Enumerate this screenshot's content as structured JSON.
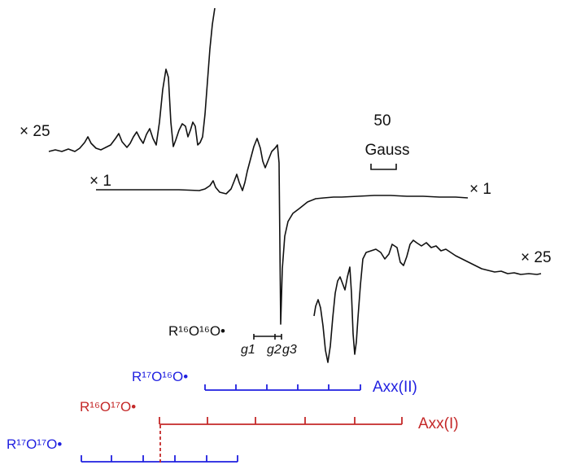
{
  "chart_data": {
    "type": "line",
    "title": "",
    "xlabel": "",
    "ylabel": "",
    "grid": false,
    "scale_bar": {
      "value": "50",
      "unit": "Gauss"
    },
    "multipliers": {
      "left_inset": "× 25",
      "main_left": "× 1",
      "main_right": "× 1",
      "right_inset": "× 25"
    },
    "g_markers": {
      "species": "R¹⁶O¹⁶O•",
      "labels": [
        "g1",
        "g2",
        "g3"
      ]
    },
    "stick_diagrams": [
      {
        "species": "R¹⁷O¹⁶O•",
        "label": "Axx(II)",
        "color": "#1f1fe0"
      },
      {
        "species": "R¹⁶O¹⁷O•",
        "label": "Axx(I)",
        "color": "#c42828"
      },
      {
        "species": "R¹⁷O¹⁷O•",
        "label": "",
        "color": "#1f1fe0"
      }
    ]
  }
}
